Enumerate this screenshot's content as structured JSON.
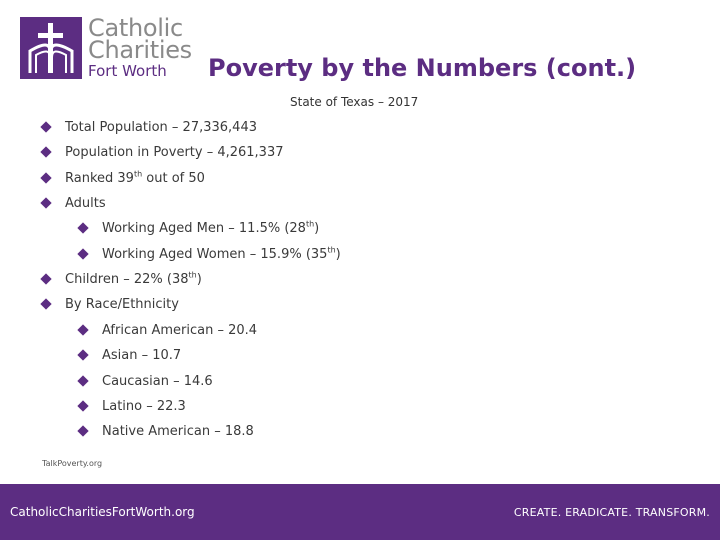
{
  "header": {
    "logo": {
      "line1": "Catholic",
      "line2": "Charities",
      "line3": "Fort Worth"
    },
    "title": "Poverty by the Numbers (cont.)",
    "subtitle": "State of Texas – 2017"
  },
  "bullets": [
    {
      "level": 1,
      "text": "Total Population – 27,336,443"
    },
    {
      "level": 1,
      "text": "Population in Poverty – 4,261,337"
    },
    {
      "level": 1,
      "pre": "Ranked 39",
      "sup": "th",
      "post": " out of 50"
    },
    {
      "level": 1,
      "text": "Adults"
    },
    {
      "level": 2,
      "pre": "Working Aged Men – 11.5% (28",
      "sup": "th",
      "post": ")"
    },
    {
      "level": 2,
      "pre": "Working Aged Women – 15.9% (35",
      "sup": "th",
      "post": ")"
    },
    {
      "level": 1,
      "pre": "Children – 22% (38",
      "sup": "th",
      "post": ")"
    },
    {
      "level": 1,
      "text": "By Race/Ethnicity"
    },
    {
      "level": 2,
      "text": "African American – 20.4"
    },
    {
      "level": 2,
      "text": "Asian – 10.7"
    },
    {
      "level": 2,
      "text": "Caucasian – 14.6"
    },
    {
      "level": 2,
      "text": "Latino – 22.3"
    },
    {
      "level": 2,
      "text": "Native American – 18.8"
    }
  ],
  "source": "TalkPoverty.org",
  "footer": {
    "website": "CatholicCharitiesFortWorth.org",
    "tagline": "CREATE. ERADICATE. TRANSFORM."
  },
  "colors": {
    "brand": "#5c2d82",
    "logo_text": "#8a8a8a"
  }
}
